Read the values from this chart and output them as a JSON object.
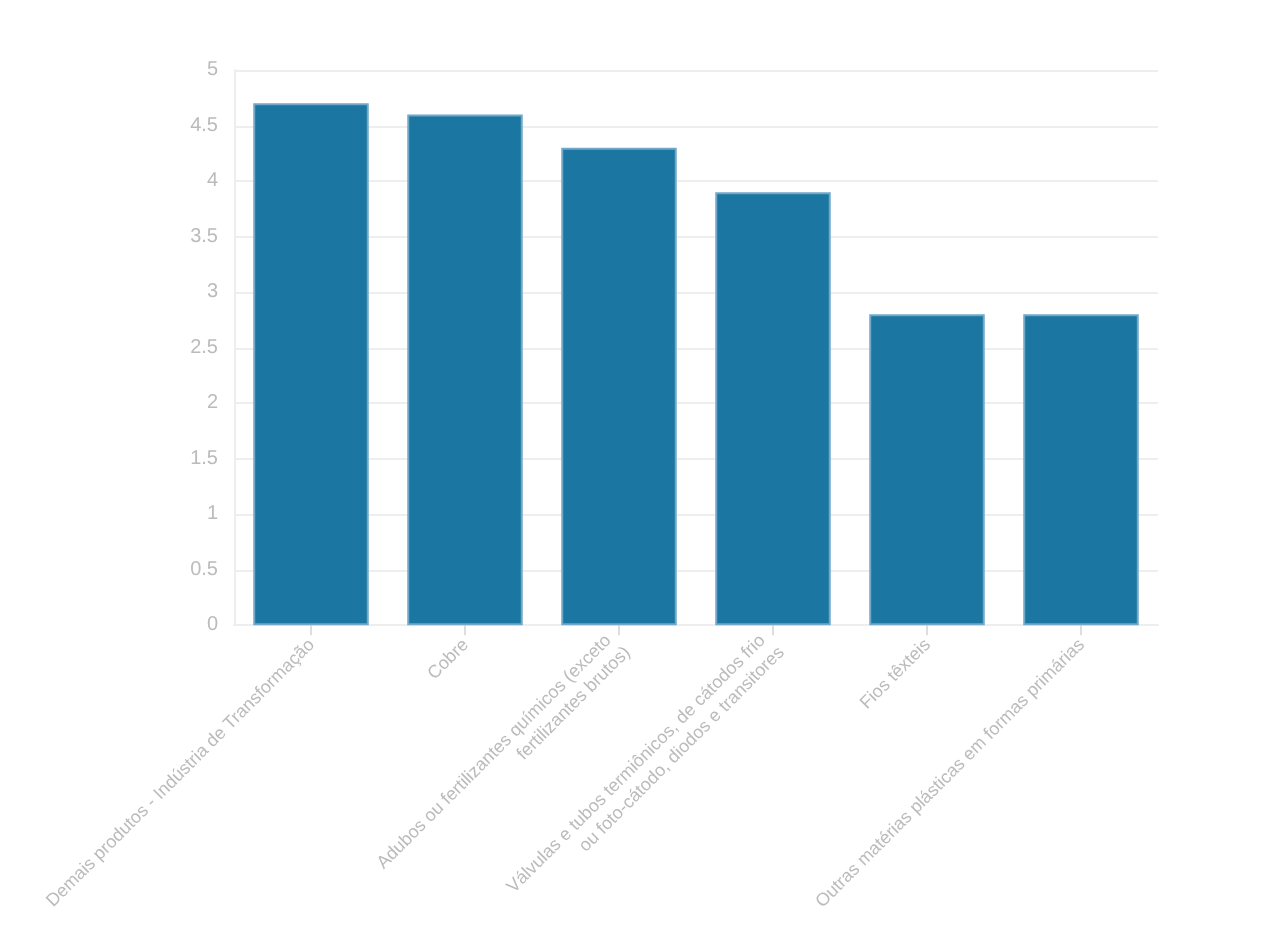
{
  "chart_data": {
    "type": "bar",
    "categories": [
      "Demais produtos - Indústria de Transformação",
      "Cobre",
      "Adubos ou fertilizantes químicos (exceto fertilizantes brutos)",
      "Válvulas e tubos termiônicos, de cátodos frio ou foto-cátodo, diodos e transitores",
      "Fios têxteis",
      "Outras matérias plásticas em formas primárias"
    ],
    "values": [
      4.7,
      4.6,
      4.3,
      3.9,
      2.8,
      2.8
    ],
    "color": "#1c76a2",
    "ylim": [
      0,
      5
    ],
    "yticks": [
      0,
      0.5,
      1,
      1.5,
      2,
      2.5,
      3,
      3.5,
      4,
      4.5,
      5
    ],
    "grid": true
  }
}
